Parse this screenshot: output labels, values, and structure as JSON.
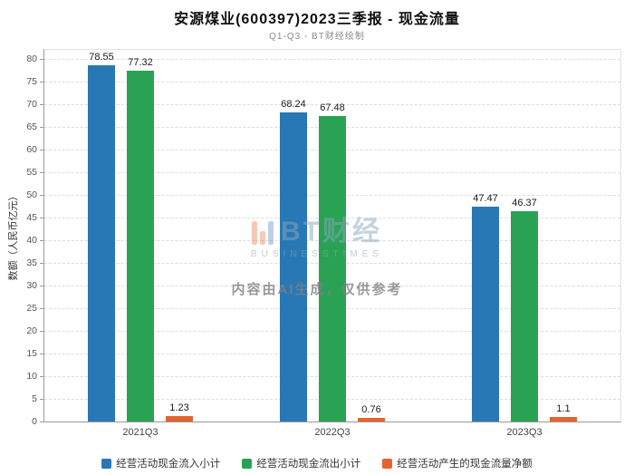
{
  "header": {
    "title": "安源煤业(600397)2023三季报 - 现金流量",
    "subtitle": "Q1-Q3 - BT财经绘制"
  },
  "chart_data": {
    "type": "bar",
    "title": "安源煤业(600397)2023三季报 - 现金流量",
    "subtitle": "Q1-Q3 - BT财经绘制",
    "categories": [
      "2021Q3",
      "2022Q3",
      "2023Q3"
    ],
    "series": [
      {
        "name": "经营活动现金流入小计",
        "color": "#2878b5",
        "values": [
          78.55,
          68.24,
          47.47
        ]
      },
      {
        "name": "经营活动现金流出小计",
        "color": "#2aa254",
        "values": [
          77.32,
          67.48,
          46.37
        ]
      },
      {
        "name": "经营活动产生的现金流量净额",
        "color": "#e4642e",
        "values": [
          1.23,
          0.76,
          1.1
        ]
      }
    ],
    "xlabel": "",
    "ylabel": "数额（人民币亿元）",
    "ylim": [
      0,
      82
    ],
    "ytick_step": 5,
    "grid": true,
    "legend_position": "bottom"
  },
  "watermark": {
    "logo_text": "BT财经",
    "logo_subtext": "BUSINESSTIMES",
    "note": "内容由AI生成，仅供参考"
  }
}
